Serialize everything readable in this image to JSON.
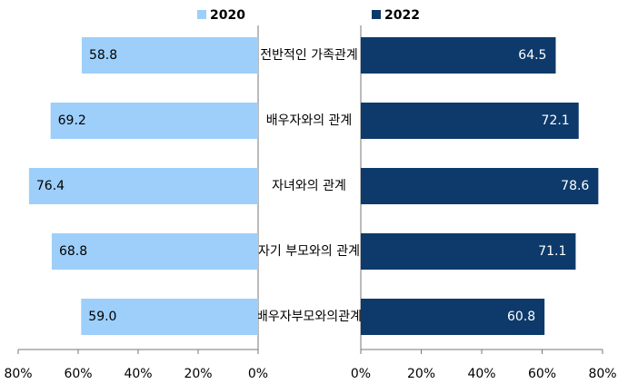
{
  "chart_data": {
    "type": "butterfly-bar",
    "categories": [
      "전반적인 가족관계",
      "배우자와의 관계",
      "자녀와의 관계",
      "자기 부모와의 관계",
      "배우자부모와의관계"
    ],
    "series": [
      {
        "name": "2020",
        "color": "#9dcffa",
        "values": [
          58.8,
          69.2,
          76.4,
          68.8,
          59.0
        ],
        "value_labels": [
          "58.8",
          "69.2",
          "76.4",
          "68.8",
          "59.0"
        ]
      },
      {
        "name": "2022",
        "color": "#0d3a6b",
        "values": [
          64.5,
          72.1,
          78.6,
          71.1,
          60.8
        ],
        "value_labels": [
          "64.5",
          "72.1",
          "78.6",
          "71.1",
          "60.8"
        ]
      }
    ],
    "xlim": [
      0,
      80
    ],
    "xticks": [
      {
        "value": 0,
        "label": "0%"
      },
      {
        "value": 20,
        "label": "20%"
      },
      {
        "value": 40,
        "label": "40%"
      },
      {
        "value": 60,
        "label": "60%"
      },
      {
        "value": 80,
        "label": "80%"
      }
    ]
  }
}
